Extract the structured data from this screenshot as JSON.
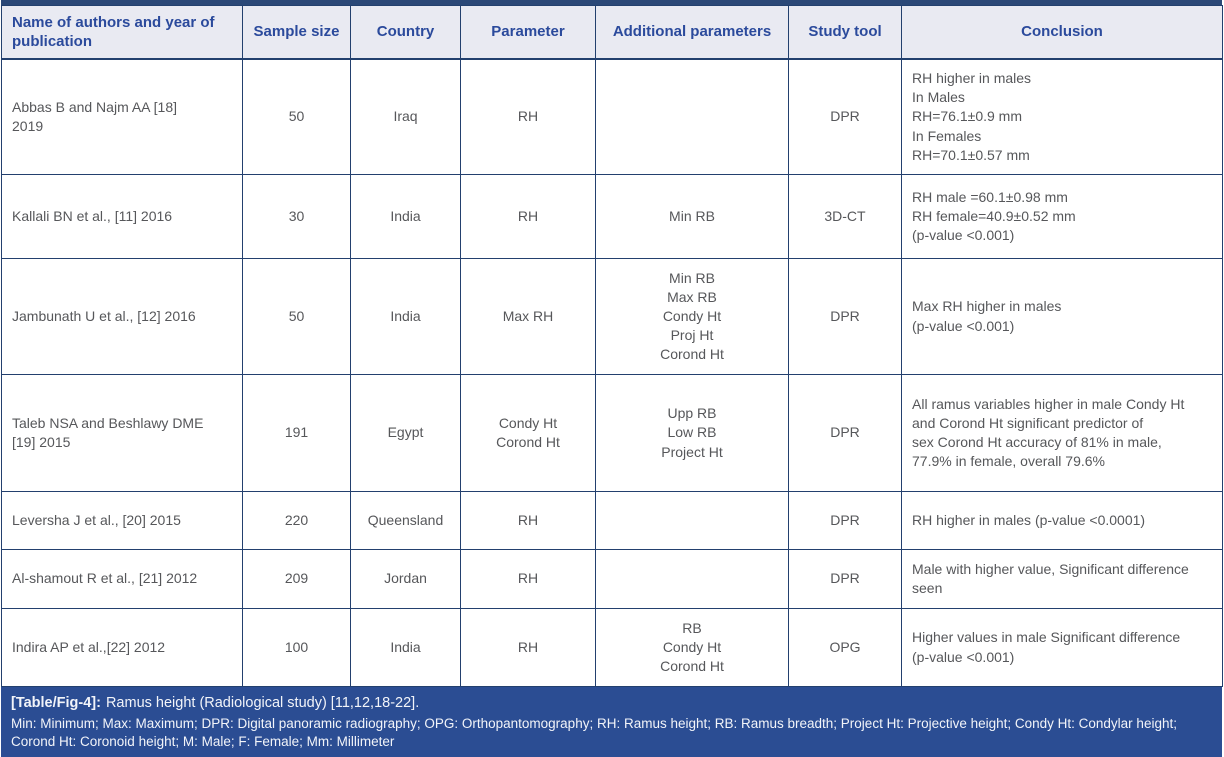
{
  "table": {
    "columns": [
      {
        "label": "Name of authors and year of publication"
      },
      {
        "label": "Sample size"
      },
      {
        "label": "Country"
      },
      {
        "label": "Parameter"
      },
      {
        "label": "Additional parameters"
      },
      {
        "label": "Study tool"
      },
      {
        "label": "Conclusion"
      }
    ],
    "rows": [
      {
        "authors": "Abbas B and Najm AA [18]\n2019",
        "sample_size": "50",
        "country": "Iraq",
        "parameter": "RH",
        "additional_parameters": "",
        "study_tool": "DPR",
        "conclusion": "RH higher in males\nIn Males\nRH=76.1±0.9 mm\nIn Females\nRH=70.1±0.57 mm"
      },
      {
        "authors": "Kallali BN et al., [11] 2016",
        "sample_size": "30",
        "country": "India",
        "parameter": "RH",
        "additional_parameters": "Min RB",
        "study_tool": "3D-CT",
        "conclusion": "RH male =60.1±0.98 mm\nRH female=40.9±0.52 mm\n(p-value <0.001)"
      },
      {
        "authors": "Jambunath U et al., [12] 2016",
        "sample_size": "50",
        "country": "India",
        "parameter": "Max RH",
        "additional_parameters": "Min RB\nMax RB\nCondy Ht\nProj Ht\nCorond Ht",
        "study_tool": "DPR",
        "conclusion": "Max RH higher in males\n(p-value <0.001)"
      },
      {
        "authors": "Taleb NSA and Beshlawy DME\n[19] 2015",
        "sample_size": "191",
        "country": "Egypt",
        "parameter": "Condy Ht\nCorond Ht",
        "additional_parameters": "Upp RB\nLow RB\nProject Ht",
        "study_tool": "DPR",
        "conclusion": "All ramus variables higher in male Condy Ht\nand Corond Ht significant predictor of\nsex Corond Ht accuracy of 81% in male,\n77.9% in female, overall 79.6%"
      },
      {
        "authors": "Leversha J et al., [20] 2015",
        "sample_size": "220",
        "country": "Queensland",
        "parameter": "RH",
        "additional_parameters": "",
        "study_tool": "DPR",
        "conclusion": "RH higher in males (p-value <0.0001)"
      },
      {
        "authors": "Al-shamout R et al., [21] 2012",
        "sample_size": "209",
        "country": "Jordan",
        "parameter": "RH",
        "additional_parameters": "",
        "study_tool": "DPR",
        "conclusion": "Male with higher value, Significant difference\nseen"
      },
      {
        "authors": "Indira AP et al.,[22] 2012",
        "sample_size": "100",
        "country": "India",
        "parameter": "RH",
        "additional_parameters": "RB\nCondy Ht\nCorond Ht",
        "study_tool": "OPG",
        "conclusion": "Higher values in male Significant difference\n(p-value <0.001)"
      }
    ]
  },
  "footer": {
    "caption_label": "[Table/Fig-4]:",
    "caption_text": "Ramus height (Radiological study) [11,12,18-22].",
    "abbreviations": "Min: Minimum; Max: Maximum; DPR: Digital panoramic radiography; OPG: Orthopantomography; RH: Ramus height; RB: Ramus breadth; Project Ht: Projective height; Condy Ht: Condylar height;\nCorond Ht: Coronoid height; M: Male; F: Female; Mm: Millimeter"
  },
  "colors": {
    "border_navy": "#23406e",
    "header_background": "#e9eaf2",
    "header_text": "#2b4a9c",
    "body_text": "#56575a",
    "footer_background": "#2b4d93",
    "top_bar": "#2b4877"
  }
}
